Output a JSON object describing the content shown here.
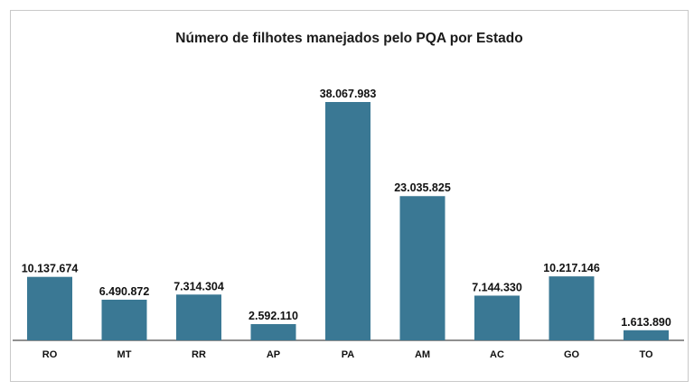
{
  "chart_data": {
    "type": "bar",
    "title": "Número de filhotes manejados pelo PQA por Estado",
    "xlabel": "",
    "ylabel": "",
    "categories": [
      "RO",
      "MT",
      "RR",
      "AP",
      "PA",
      "AM",
      "AC",
      "GO",
      "TO"
    ],
    "values": [
      10137674,
      6490872,
      7314304,
      2592110,
      38067983,
      23035825,
      7144330,
      10217146,
      1613890
    ],
    "value_labels": [
      "10.137.674",
      "6.490.872",
      "7.314.304",
      "2.592.110",
      "38.067.983",
      "23.035.825",
      "7.144.330",
      "10.217.146",
      "1.613.890"
    ],
    "ylim": [
      0,
      40000000
    ],
    "grid": false,
    "legend": "none",
    "bar_color": "#3a7894"
  }
}
